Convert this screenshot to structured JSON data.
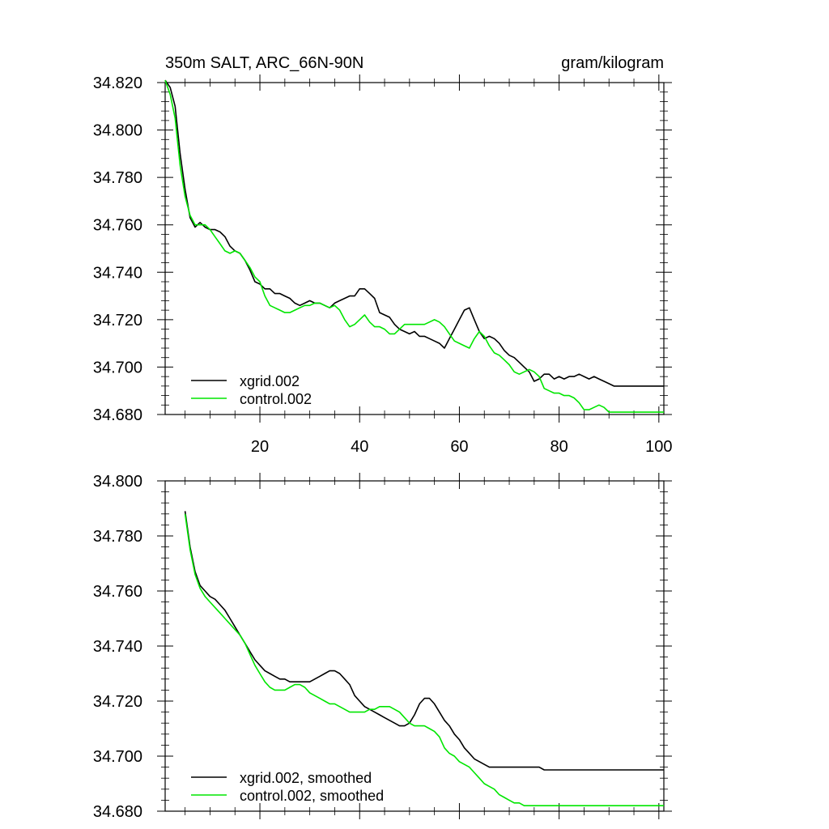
{
  "chart_data": [
    {
      "type": "line",
      "title_left": "350m SALT, ARC_66N-90N",
      "title_right": "gram/kilogram",
      "xlim": [
        1,
        101
      ],
      "ylim": [
        34.68,
        34.82
      ],
      "yticks": [
        "34.680",
        "34.700",
        "34.720",
        "34.740",
        "34.760",
        "34.780",
        "34.800",
        "34.820"
      ],
      "xticks": [
        "20",
        "40",
        "60",
        "80",
        "100"
      ],
      "legend": "bottom-left",
      "series": [
        {
          "name": "xgrid.002",
          "color": "#000000",
          "x": [
            1,
            2,
            3,
            4,
            5,
            6,
            7,
            8,
            9,
            10,
            11,
            12,
            13,
            14,
            15,
            16,
            17,
            18,
            19,
            20,
            21,
            22,
            23,
            24,
            25,
            26,
            27,
            28,
            29,
            30,
            31,
            32,
            33,
            34,
            35,
            36,
            37,
            38,
            39,
            40,
            41,
            42,
            43,
            44,
            45,
            46,
            47,
            48,
            49,
            50,
            51,
            52,
            53,
            54,
            55,
            56,
            57,
            58,
            59,
            60,
            61,
            62,
            63,
            64,
            65,
            66,
            67,
            68,
            69,
            70,
            71,
            72,
            73,
            74,
            75,
            76,
            77,
            78,
            79,
            80,
            81,
            82,
            83,
            84,
            85,
            86,
            87,
            88,
            89,
            90,
            91,
            92,
            93,
            94,
            95,
            96,
            97,
            98,
            99,
            100,
            101
          ],
          "y": [
            34.821,
            34.818,
            34.81,
            34.79,
            34.775,
            34.763,
            34.759,
            34.761,
            34.759,
            34.758,
            34.758,
            34.757,
            34.755,
            34.751,
            34.749,
            34.748,
            34.745,
            34.741,
            34.736,
            34.735,
            34.733,
            34.733,
            34.731,
            34.731,
            34.73,
            34.729,
            34.727,
            34.726,
            34.727,
            34.728,
            34.727,
            34.727,
            34.726,
            34.725,
            34.727,
            34.728,
            34.729,
            34.73,
            34.73,
            34.733,
            34.733,
            34.731,
            34.729,
            34.723,
            34.722,
            34.721,
            34.718,
            34.716,
            34.715,
            34.714,
            34.715,
            34.713,
            34.713,
            34.712,
            34.711,
            34.71,
            34.708,
            34.712,
            34.716,
            34.72,
            34.724,
            34.725,
            34.72,
            34.715,
            34.712,
            34.713,
            34.712,
            34.71,
            34.707,
            34.705,
            34.704,
            34.702,
            34.7,
            34.698,
            34.694,
            34.695,
            34.697,
            34.697,
            34.695,
            34.696,
            34.695,
            34.696,
            34.696,
            34.697,
            34.696,
            34.695,
            34.696,
            34.695,
            34.694,
            34.693,
            34.692,
            34.692,
            34.692,
            34.692,
            34.692,
            34.692,
            34.692,
            34.692,
            34.692,
            34.692,
            34.692
          ]
        },
        {
          "name": "control.002",
          "color": "#00e600",
          "x": [
            1,
            2,
            3,
            4,
            5,
            6,
            7,
            8,
            9,
            10,
            11,
            12,
            13,
            14,
            15,
            16,
            17,
            18,
            19,
            20,
            21,
            22,
            23,
            24,
            25,
            26,
            27,
            28,
            29,
            30,
            31,
            32,
            33,
            34,
            35,
            36,
            37,
            38,
            39,
            40,
            41,
            42,
            43,
            44,
            45,
            46,
            47,
            48,
            49,
            50,
            51,
            52,
            53,
            54,
            55,
            56,
            57,
            58,
            59,
            60,
            61,
            62,
            63,
            64,
            65,
            66,
            67,
            68,
            69,
            70,
            71,
            72,
            73,
            74,
            75,
            76,
            77,
            78,
            79,
            80,
            81,
            82,
            83,
            84,
            85,
            86,
            87,
            88,
            89,
            90,
            91,
            92,
            93,
            94,
            95,
            96,
            97,
            98,
            99,
            100,
            101
          ],
          "y": [
            34.821,
            34.815,
            34.805,
            34.785,
            34.772,
            34.764,
            34.76,
            34.76,
            34.76,
            34.758,
            34.755,
            34.752,
            34.749,
            34.748,
            34.749,
            34.748,
            34.745,
            34.742,
            34.738,
            34.736,
            34.73,
            34.726,
            34.725,
            34.724,
            34.723,
            34.723,
            34.724,
            34.725,
            34.726,
            34.726,
            34.727,
            34.727,
            34.726,
            34.725,
            34.726,
            34.724,
            34.72,
            34.717,
            34.718,
            34.72,
            34.722,
            34.719,
            34.717,
            34.717,
            34.716,
            34.714,
            34.714,
            34.716,
            34.718,
            34.718,
            34.718,
            34.718,
            34.718,
            34.719,
            34.72,
            34.719,
            34.717,
            34.714,
            34.711,
            34.71,
            34.709,
            34.708,
            34.712,
            34.715,
            34.713,
            34.709,
            34.706,
            34.705,
            34.703,
            34.701,
            34.698,
            34.697,
            34.698,
            34.699,
            34.698,
            34.696,
            34.691,
            34.69,
            34.689,
            34.689,
            34.688,
            34.688,
            34.687,
            34.685,
            34.682,
            34.682,
            34.683,
            34.684,
            34.683,
            34.681,
            34.681,
            34.681,
            34.681,
            34.681,
            34.681,
            34.681,
            34.681,
            34.681,
            34.681,
            34.681,
            34.681
          ]
        }
      ]
    },
    {
      "type": "line",
      "xlim": [
        1,
        101
      ],
      "ylim": [
        34.68,
        34.8
      ],
      "yticks": [
        "34.680",
        "34.700",
        "34.720",
        "34.740",
        "34.760",
        "34.780",
        "34.800"
      ],
      "legend": "bottom-left",
      "series": [
        {
          "name": "xgrid.002, smoothed",
          "color": "#000000",
          "x": [
            5,
            6,
            7,
            8,
            9,
            10,
            11,
            12,
            13,
            14,
            15,
            16,
            17,
            18,
            19,
            20,
            21,
            22,
            23,
            24,
            25,
            26,
            27,
            28,
            29,
            30,
            31,
            32,
            33,
            34,
            35,
            36,
            37,
            38,
            39,
            40,
            41,
            42,
            43,
            44,
            45,
            46,
            47,
            48,
            49,
            50,
            51,
            52,
            53,
            54,
            55,
            56,
            57,
            58,
            59,
            60,
            61,
            62,
            63,
            64,
            65,
            66,
            67,
            68,
            69,
            70,
            71,
            72,
            73,
            74,
            75,
            76,
            77,
            78,
            79,
            80,
            81,
            82,
            83,
            84,
            85,
            86,
            87,
            88,
            89,
            90,
            91,
            92,
            93,
            94,
            95,
            96,
            97,
            98,
            99,
            100,
            101
          ],
          "y": [
            34.789,
            34.776,
            34.767,
            34.762,
            34.76,
            34.758,
            34.757,
            34.755,
            34.753,
            34.75,
            34.747,
            34.744,
            34.741,
            34.738,
            34.735,
            34.733,
            34.731,
            34.73,
            34.729,
            34.728,
            34.728,
            34.727,
            34.727,
            34.727,
            34.727,
            34.727,
            34.728,
            34.729,
            34.73,
            34.731,
            34.731,
            34.73,
            34.728,
            34.726,
            34.722,
            34.72,
            34.718,
            34.717,
            34.716,
            34.715,
            34.714,
            34.713,
            34.712,
            34.711,
            34.711,
            34.712,
            34.715,
            34.719,
            34.721,
            34.721,
            34.719,
            34.716,
            34.713,
            34.711,
            34.708,
            34.706,
            34.703,
            34.701,
            34.699,
            34.698,
            34.697,
            34.696,
            34.696,
            34.696,
            34.696,
            34.696,
            34.696,
            34.696,
            34.696,
            34.696,
            34.696,
            34.696,
            34.695,
            34.695,
            34.695,
            34.695,
            34.695,
            34.695,
            34.695,
            34.695,
            34.695,
            34.695,
            34.695,
            34.695,
            34.695,
            34.695,
            34.695,
            34.695,
            34.695,
            34.695,
            34.695,
            34.695,
            34.695,
            34.695,
            34.695,
            34.695,
            34.695
          ]
        },
        {
          "name": "control.002, smoothed",
          "color": "#00e600",
          "x": [
            5,
            6,
            7,
            8,
            9,
            10,
            11,
            12,
            13,
            14,
            15,
            16,
            17,
            18,
            19,
            20,
            21,
            22,
            23,
            24,
            25,
            26,
            27,
            28,
            29,
            30,
            31,
            32,
            33,
            34,
            35,
            36,
            37,
            38,
            39,
            40,
            41,
            42,
            43,
            44,
            45,
            46,
            47,
            48,
            49,
            50,
            51,
            52,
            53,
            54,
            55,
            56,
            57,
            58,
            59,
            60,
            61,
            62,
            63,
            64,
            65,
            66,
            67,
            68,
            69,
            70,
            71,
            72,
            73,
            74,
            75,
            76,
            77,
            78,
            79,
            80,
            81,
            82,
            83,
            84,
            85,
            86,
            87,
            88,
            89,
            90,
            91,
            92,
            93,
            94,
            95,
            96,
            97,
            98,
            99,
            100,
            101
          ],
          "y": [
            34.788,
            34.775,
            34.766,
            34.761,
            34.758,
            34.756,
            34.754,
            34.752,
            34.75,
            34.748,
            34.746,
            34.744,
            34.741,
            34.737,
            34.733,
            34.73,
            34.727,
            34.725,
            34.724,
            34.724,
            34.724,
            34.725,
            34.726,
            34.726,
            34.725,
            34.723,
            34.722,
            34.721,
            34.72,
            34.719,
            34.719,
            34.718,
            34.717,
            34.716,
            34.716,
            34.716,
            34.716,
            34.717,
            34.717,
            34.718,
            34.718,
            34.718,
            34.717,
            34.716,
            34.714,
            34.712,
            34.711,
            34.711,
            34.711,
            34.71,
            34.709,
            34.707,
            34.703,
            34.701,
            34.7,
            34.698,
            34.697,
            34.696,
            34.694,
            34.692,
            34.69,
            34.689,
            34.688,
            34.686,
            34.685,
            34.684,
            34.683,
            34.683,
            34.682,
            34.682,
            34.682,
            34.682,
            34.682,
            34.682,
            34.682,
            34.682,
            34.682,
            34.682,
            34.682,
            34.682,
            34.682,
            34.682,
            34.682,
            34.682,
            34.682,
            34.682,
            34.682,
            34.682,
            34.682,
            34.682,
            34.682,
            34.682,
            34.682,
            34.682,
            34.682,
            34.682,
            34.682
          ]
        }
      ]
    }
  ]
}
